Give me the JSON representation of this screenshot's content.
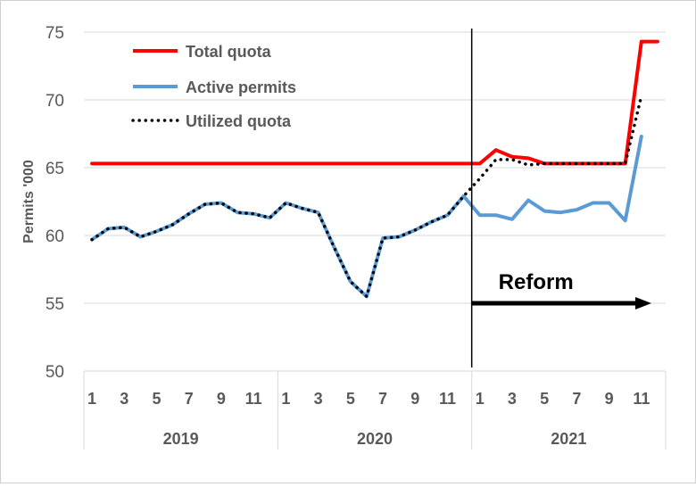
{
  "chart_data": {
    "type": "line",
    "ylabel": "Permits '000",
    "ylim": [
      50,
      75
    ],
    "yticks": [
      50,
      55,
      60,
      65,
      70,
      75
    ],
    "grid": true,
    "legend_position": "top-left",
    "x_months": [
      "1",
      "2",
      "3",
      "4",
      "5",
      "6",
      "7",
      "8",
      "9",
      "10",
      "11",
      "12",
      "1",
      "2",
      "3",
      "4",
      "5",
      "6",
      "7",
      "8",
      "9",
      "10",
      "11",
      "12",
      "1",
      "2",
      "3",
      "4",
      "5",
      "6",
      "7",
      "8",
      "9",
      "10",
      "11",
      "12"
    ],
    "x_tick_labels": [
      "1",
      "3",
      "5",
      "7",
      "9",
      "11",
      "1",
      "3",
      "5",
      "7",
      "9",
      "11",
      "1",
      "3",
      "5",
      "7",
      "9",
      "11"
    ],
    "years": [
      "2019",
      "2020",
      "2021"
    ],
    "series": [
      {
        "name": "Total quota",
        "color": "#ff0000",
        "style": "solid",
        "values": [
          65.3,
          65.3,
          65.3,
          65.3,
          65.3,
          65.3,
          65.3,
          65.3,
          65.3,
          65.3,
          65.3,
          65.3,
          65.3,
          65.3,
          65.3,
          65.3,
          65.3,
          65.3,
          65.3,
          65.3,
          65.3,
          65.3,
          65.3,
          65.3,
          65.3,
          66.3,
          65.8,
          65.7,
          65.3,
          65.3,
          65.3,
          65.3,
          65.3,
          65.3,
          74.3,
          74.3
        ]
      },
      {
        "name": "Active permits",
        "color": "#5b9bd5",
        "style": "solid",
        "values": [
          59.7,
          60.5,
          60.6,
          59.9,
          60.3,
          60.8,
          61.6,
          62.3,
          62.4,
          61.7,
          61.6,
          61.3,
          62.4,
          62.0,
          61.7,
          59.1,
          56.6,
          55.5,
          59.8,
          59.9,
          60.4,
          61.0,
          61.5,
          62.9,
          61.5,
          61.5,
          61.2,
          62.6,
          61.8,
          61.7,
          61.9,
          62.4,
          62.4,
          61.1,
          67.3,
          null
        ]
      },
      {
        "name": "Utilized quota",
        "color": "#000000",
        "style": "dotted",
        "values": [
          59.7,
          60.5,
          60.6,
          59.9,
          60.3,
          60.8,
          61.6,
          62.3,
          62.4,
          61.7,
          61.6,
          61.3,
          62.4,
          62.0,
          61.7,
          59.1,
          56.6,
          55.5,
          59.8,
          59.9,
          60.4,
          61.0,
          61.5,
          62.9,
          64.2,
          65.6,
          65.6,
          65.2,
          65.3,
          65.3,
          65.3,
          65.3,
          65.3,
          65.3,
          70.3,
          null
        ]
      }
    ],
    "annotation": {
      "label": "Reform",
      "start_index": 23.5,
      "end_index": 35.5,
      "arrow_y": 55
    }
  }
}
